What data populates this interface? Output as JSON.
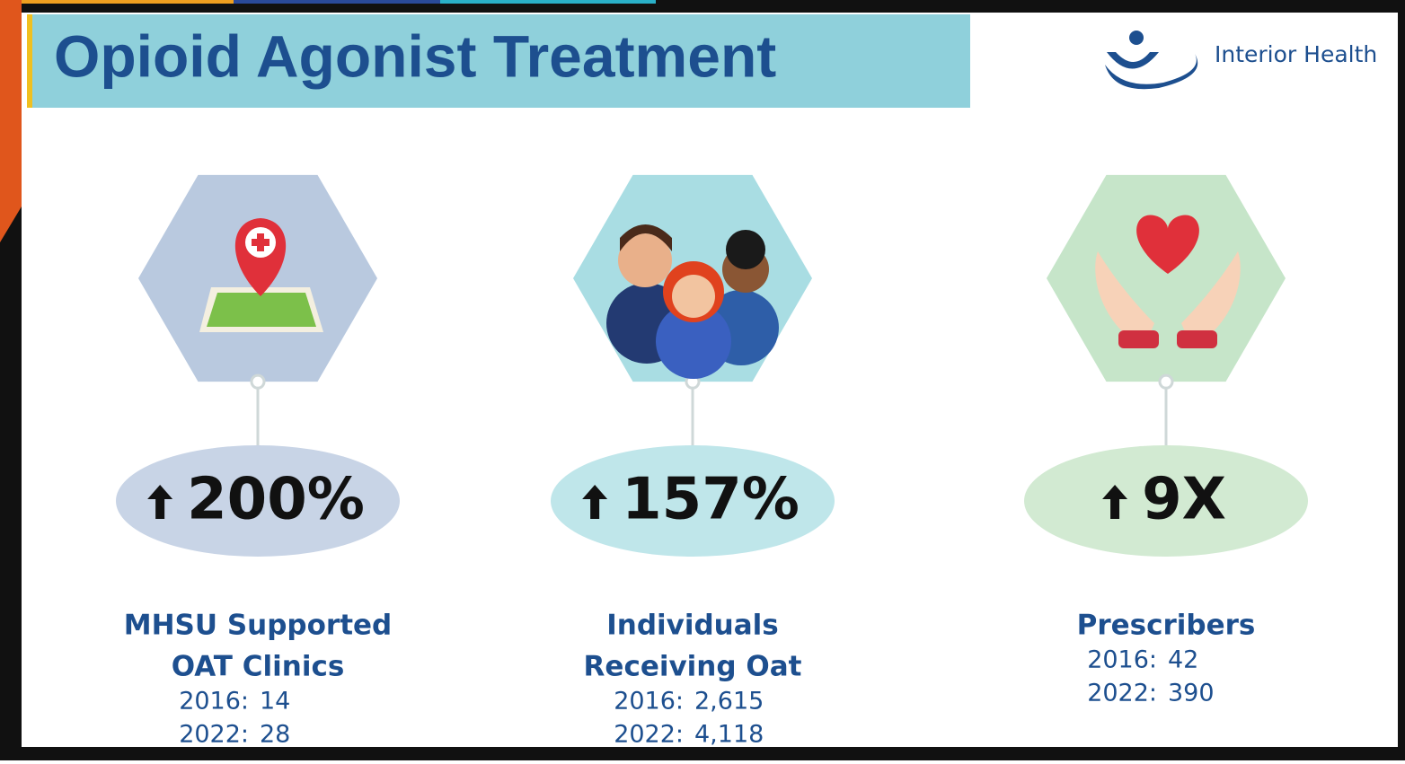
{
  "header": {
    "title": "Opioid Agonist Treatment",
    "logo": "Interior Health"
  },
  "cards": [
    {
      "stat": "200%",
      "label": [
        "MHSU Supported",
        "OAT Clinics"
      ],
      "years": [
        {
          "year": "2016:",
          "value": "14"
        },
        {
          "year": "2022:",
          "value": "28"
        }
      ]
    },
    {
      "stat": "157%",
      "label": [
        "Individuals",
        "Receiving Oat"
      ],
      "years": [
        {
          "year": "2016:",
          "value": "2,615"
        },
        {
          "year": "2022:",
          "value": "4,118"
        }
      ]
    },
    {
      "stat": "9X",
      "label": [
        "Prescribers"
      ],
      "years": [
        {
          "year": "2016:",
          "value": "42"
        },
        {
          "year": "2022:",
          "value": "390"
        }
      ]
    }
  ]
}
